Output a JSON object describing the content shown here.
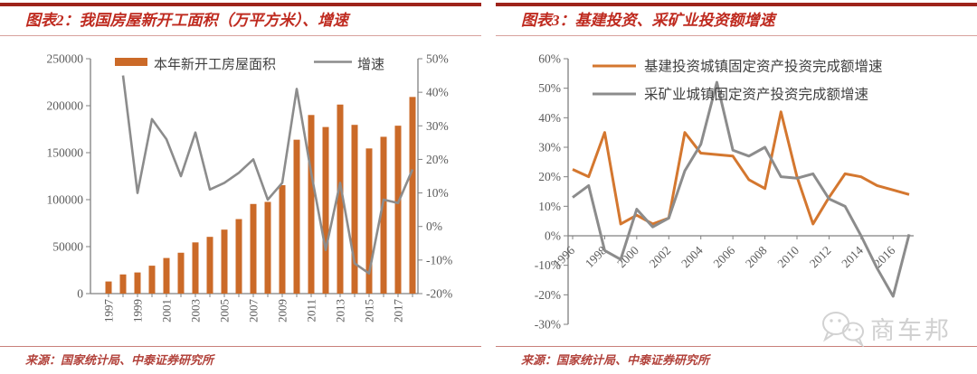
{
  "panels": [
    {
      "title": "图表2：我国房屋新开工面积（万平方米）、增速",
      "source": "来源：国家统计局、中泰证券研究所"
    },
    {
      "title": "图表3：基建投资、采矿业投资额增速",
      "source": "来源：国家统计局、中泰证券研究所"
    }
  ],
  "watermark": {
    "icon": "wechat-icon",
    "text": "商车邦",
    "color": "#d0d0d0"
  },
  "colors": {
    "bar_orange": "#cb6a28",
    "line_orange": "#d4772f",
    "line_gray": "#8c8c8c",
    "axis": "#808080",
    "tick_text": "#5a5a5a",
    "legend_text": "#3f3f3f",
    "title_red": "#bf2b20",
    "rule_dark_red": "#9e231b",
    "rule_light_red": "#c9807b",
    "source_red": "#b2423b"
  },
  "chart_data": [
    {
      "type": "bar",
      "title": "我国房屋新开工面积（万平方米）、增速",
      "categories": [
        1997,
        1998,
        1999,
        2000,
        2001,
        2002,
        2003,
        2004,
        2005,
        2006,
        2007,
        2008,
        2009,
        2010,
        2011,
        2012,
        2013,
        2014,
        2015,
        2016,
        2017,
        2018
      ],
      "x_tick_labels": [
        "1997",
        "1999",
        "2001",
        "2003",
        "2005",
        "2007",
        "2009",
        "2011",
        "2013",
        "2015",
        "2017"
      ],
      "series": [
        {
          "name": "本年新开工房屋面积",
          "type": "bar",
          "axis": "left",
          "color": "#cb6a28",
          "values": [
            12900,
            20400,
            22500,
            29700,
            37900,
            43500,
            54500,
            60400,
            68100,
            79300,
            95400,
            97600,
            115400,
            163800,
            190100,
            177300,
            201200,
            179600,
            154500,
            166900,
            178700,
            209300
          ]
        },
        {
          "name": "增速",
          "type": "line",
          "axis": "right",
          "color": "#8c8c8c",
          "values": [
            null,
            45,
            10,
            32,
            26,
            15,
            28,
            11,
            13,
            16,
            20,
            8,
            13,
            41,
            16,
            -7,
            13,
            -11,
            -14,
            8,
            7,
            17
          ]
        }
      ],
      "left_axis": {
        "min": 0,
        "max": 250000,
        "step": 50000,
        "tick_labels": [
          "0",
          "50000",
          "100000",
          "150000",
          "200000",
          "250000"
        ]
      },
      "right_axis": {
        "min": -20,
        "max": 50,
        "step": 10,
        "format": "%",
        "tick_labels": [
          "-20%",
          "-10%",
          "0%",
          "10%",
          "20%",
          "30%",
          "40%",
          "50%"
        ]
      },
      "grid": false,
      "legend_position": "top-inside"
    },
    {
      "type": "line",
      "title": "基建投资、采矿业投资额增速",
      "x": [
        1996,
        1997,
        1998,
        1999,
        2000,
        2001,
        2002,
        2003,
        2004,
        2005,
        2006,
        2007,
        2008,
        2009,
        2010,
        2011,
        2012,
        2013,
        2014,
        2015,
        2016,
        2017
      ],
      "x_tick_labels": [
        "1996",
        "1998",
        "2000",
        "2002",
        "2004",
        "2006",
        "2008",
        "2010",
        "2012",
        "2014",
        "2016"
      ],
      "series": [
        {
          "name": "基建投资城镇固定资产投资完成额增速",
          "color": "#d4772f",
          "values": [
            22.5,
            20,
            35,
            4,
            7,
            4,
            6,
            35,
            28,
            27.5,
            27,
            19,
            16,
            42,
            20,
            4,
            13,
            21,
            20,
            17,
            15.5,
            14
          ]
        },
        {
          "name": "采矿业城镇固定资产投资完成额增速",
          "color": "#8c8c8c",
          "values": [
            13,
            17,
            -5,
            -8,
            9,
            3,
            6,
            22,
            31,
            52,
            29,
            27,
            30,
            20,
            19.5,
            21,
            12.5,
            10,
            0,
            -11,
            -20.5,
            0.5
          ]
        }
      ],
      "y_axis": {
        "min": -30,
        "max": 60,
        "step": 10,
        "format": "%",
        "tick_labels": [
          "-30%",
          "-20%",
          "-10%",
          "0%",
          "10%",
          "20%",
          "30%",
          "40%",
          "50%",
          "60%"
        ]
      },
      "grid": false,
      "legend_position": "top-inside"
    }
  ]
}
